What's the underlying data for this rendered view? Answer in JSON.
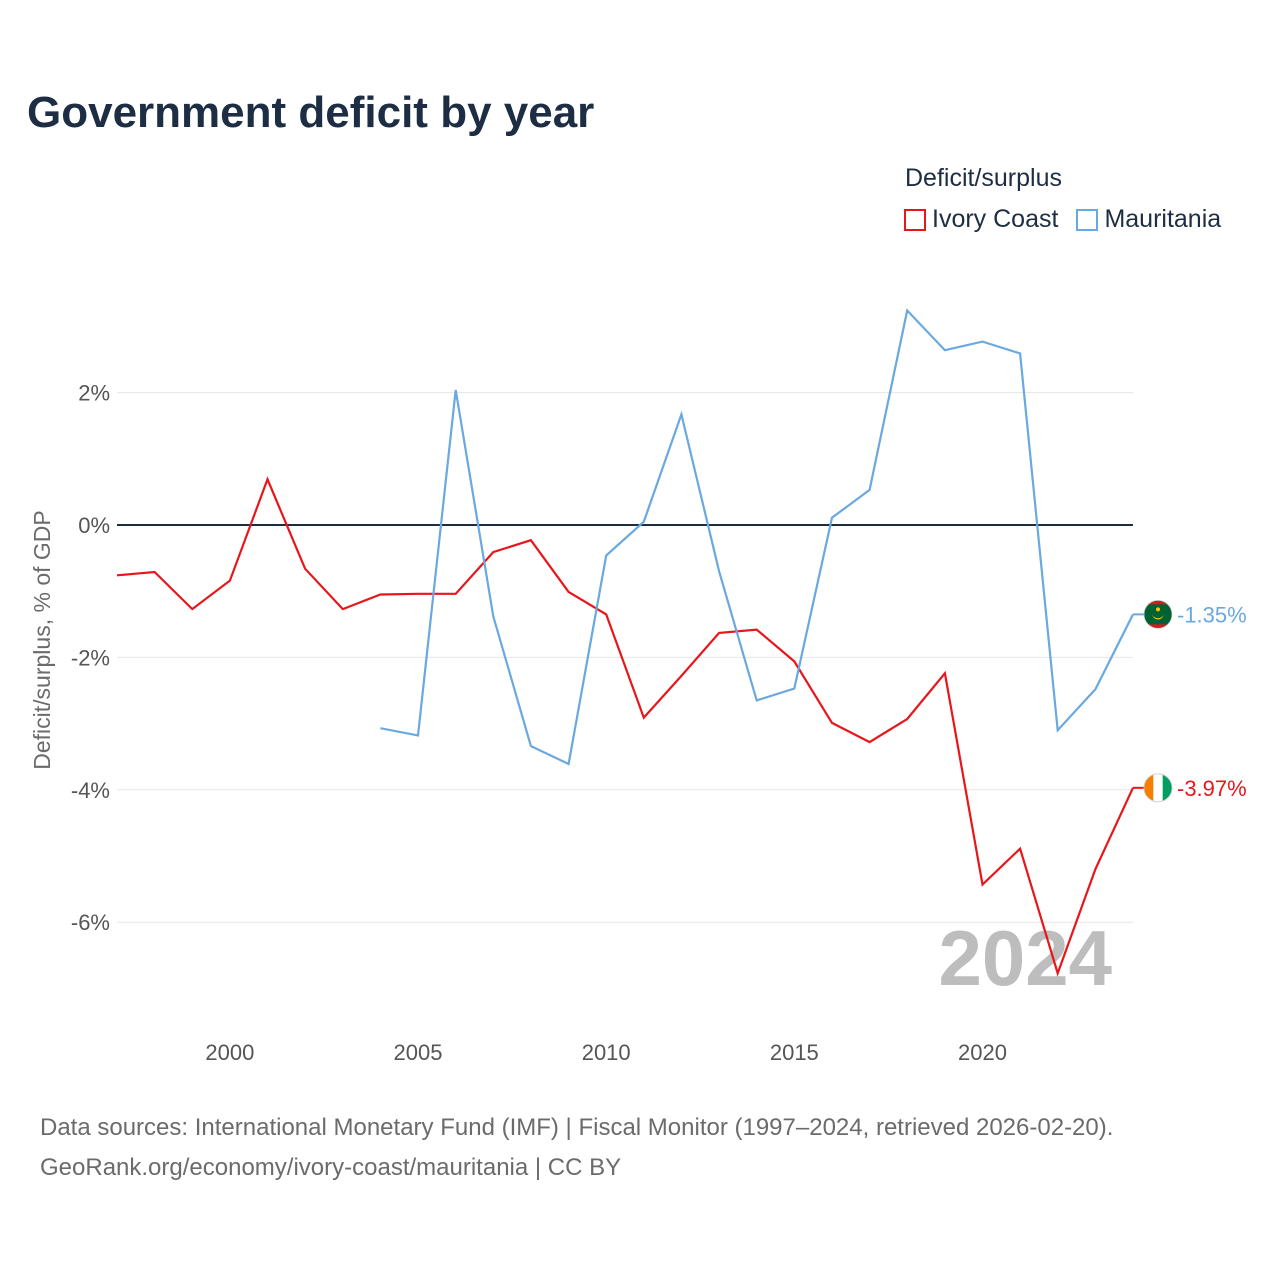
{
  "title": "Government deficit by year",
  "legend": {
    "title": "Deficit/surplus",
    "items": [
      {
        "label": "Ivory Coast",
        "color": "#e8161b"
      },
      {
        "label": "Mauritania",
        "color": "#6aa8e0"
      }
    ]
  },
  "footer": {
    "line1": "Data sources: International Monetary Fund (IMF) | Fiscal Monitor (1997–2024, retrieved 2026-02-20).",
    "line2": "GeoRank.org/economy/ivory-coast/mauritania | CC BY"
  },
  "chart_data": {
    "type": "line",
    "title": "Government deficit by year",
    "xlabel": "",
    "ylabel": "Deficit/surplus, % of GDP",
    "xlim": [
      1997,
      2024
    ],
    "ylim": [
      -7.5,
      3.6
    ],
    "x_ticks": [
      {
        "value": 2000,
        "label": "2000"
      },
      {
        "value": 2005,
        "label": "2005"
      },
      {
        "value": 2010,
        "label": "2010"
      },
      {
        "value": 2015,
        "label": "2015"
      },
      {
        "value": 2020,
        "label": "2020"
      }
    ],
    "y_ticks": [
      {
        "value": 2,
        "label": "2%"
      },
      {
        "value": 0,
        "label": "0%"
      },
      {
        "value": -2,
        "label": "-2%"
      },
      {
        "value": -4,
        "label": "-4%"
      },
      {
        "value": -6,
        "label": "-6%"
      }
    ],
    "year_watermark": "2024",
    "series": [
      {
        "name": "Ivory Coast",
        "color": "#e8161b",
        "end_label": "-3.97%",
        "flag": "ivory-coast-flag",
        "x": [
          1997,
          1998,
          1999,
          2000,
          2001,
          2002,
          2003,
          2004,
          2005,
          2006,
          2007,
          2008,
          2009,
          2010,
          2011,
          2012,
          2013,
          2014,
          2015,
          2016,
          2017,
          2018,
          2019,
          2020,
          2021,
          2022,
          2023,
          2024
        ],
        "values": [
          -0.76,
          -0.71,
          -1.27,
          -0.84,
          0.69,
          -0.66,
          -1.27,
          -1.05,
          -1.04,
          -1.04,
          -0.41,
          -0.23,
          -1.01,
          -1.35,
          -2.91,
          -2.28,
          -1.63,
          -1.58,
          -2.06,
          -2.99,
          -3.28,
          -2.93,
          -2.24,
          -5.43,
          -4.89,
          -6.77,
          -5.2,
          -3.97
        ]
      },
      {
        "name": "Mauritania",
        "color": "#6aa8e0",
        "end_label": "-1.35%",
        "flag": "mauritania-flag",
        "x": [
          2004,
          2005,
          2006,
          2007,
          2008,
          2009,
          2010,
          2011,
          2012,
          2013,
          2014,
          2015,
          2016,
          2017,
          2018,
          2019,
          2020,
          2021,
          2022,
          2023,
          2024
        ],
        "values": [
          -3.07,
          -3.18,
          2.04,
          -1.38,
          -3.34,
          -3.61,
          -0.46,
          0.05,
          1.67,
          -0.7,
          -2.65,
          -2.47,
          0.11,
          0.53,
          3.24,
          2.64,
          2.77,
          2.59,
          -3.1,
          -2.48,
          -1.35
        ]
      }
    ]
  }
}
